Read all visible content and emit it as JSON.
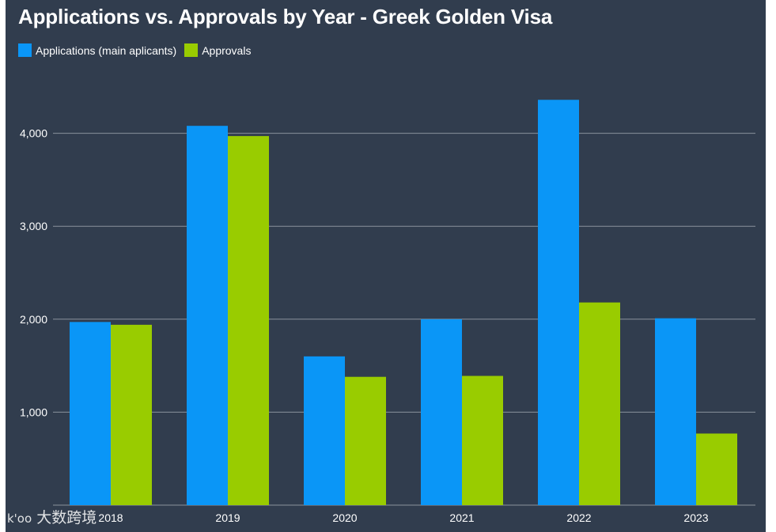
{
  "chart_data": {
    "type": "bar",
    "title": "Applications vs. Approvals by Year - Greek Golden Visa",
    "categories": [
      "2018",
      "2019",
      "2020",
      "2021",
      "2022",
      "2023"
    ],
    "series": [
      {
        "name": "Applications (main aplicants)",
        "color": "#0a96f7",
        "values": [
          1970,
          4080,
          1600,
          2000,
          4360,
          2010
        ]
      },
      {
        "name": "Approvals",
        "color": "#99cc00",
        "values": [
          1940,
          3970,
          1380,
          1390,
          2180,
          770
        ]
      }
    ],
    "y_ticks": [
      1000,
      2000,
      3000,
      4000
    ],
    "y_tick_labels": [
      "1,000",
      "2,000",
      "3,000",
      "4,000"
    ],
    "ylim": [
      0,
      4600
    ],
    "xlabel": "",
    "ylabel": "",
    "grid": true,
    "legend": "top-left"
  },
  "colors": {
    "background": "#313d4e",
    "gridline": "#8a929c",
    "text": "#ffffff"
  },
  "watermark": {
    "text": "大数跨境",
    "logo": "k'oo"
  }
}
